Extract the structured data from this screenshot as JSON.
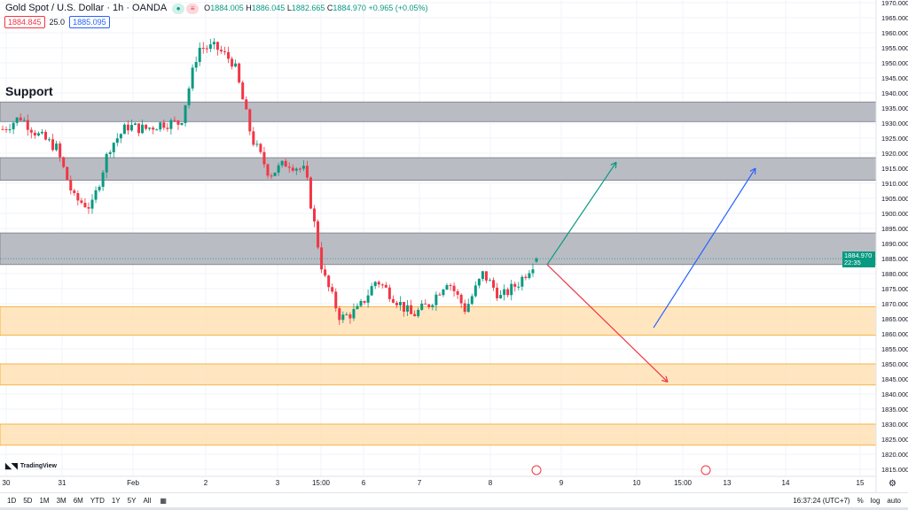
{
  "header": {
    "symbol": "Gold Spot / U.S. Dollar · 1h · OANDA",
    "open_label": "O",
    "open": "1884.005",
    "high_label": "H",
    "high": "1886.045",
    "low_label": "L",
    "low": "1882.665",
    "close_label": "C",
    "close": "1884.970",
    "change": "+0.965 (+0.05%)",
    "bid": "1884.845",
    "spread": "25.0",
    "ask": "1885.095"
  },
  "annotation_text": "Support",
  "current_price": {
    "value": "1884.970",
    "countdown": "22:35",
    "color": "#089981"
  },
  "price_axis": {
    "min": 1815,
    "max": 1970,
    "step": 5,
    "labels": [
      "1970.000",
      "1965.000",
      "1960.000",
      "1955.000",
      "1950.000",
      "1945.000",
      "1940.000",
      "1935.000",
      "1930.000",
      "1925.000",
      "1920.000",
      "1915.000",
      "1910.000",
      "1905.000",
      "1900.000",
      "1895.000",
      "1890.000",
      "1885.000",
      "1880.000",
      "1875.000",
      "1870.000",
      "1865.000",
      "1860.000",
      "1855.000",
      "1850.000",
      "1845.000",
      "1840.000",
      "1835.000",
      "1830.000",
      "1825.000",
      "1820.000",
      "1815.000"
    ]
  },
  "time_axis": [
    "30",
    "31",
    "Feb",
    "2",
    "3",
    "15:00",
    "6",
    "7",
    "8",
    "9",
    "10",
    "15:00",
    "13",
    "14",
    "15"
  ],
  "zones": [
    {
      "type": "resistance",
      "from": 1930.5,
      "to": 1937,
      "color": "#b2b5be"
    },
    {
      "type": "resistance",
      "from": 1911,
      "to": 1918.5,
      "color": "#b2b5be"
    },
    {
      "type": "resistance",
      "from": 1883,
      "to": 1893.5,
      "color": "#b2b5be"
    },
    {
      "type": "support",
      "from": 1859.5,
      "to": 1869,
      "color": "#ffe0b2"
    },
    {
      "type": "support",
      "from": 1843,
      "to": 1850,
      "color": "#ffe0b2"
    },
    {
      "type": "support",
      "from": 1823,
      "to": 1830,
      "color": "#ffe0b2"
    }
  ],
  "price_path": [
    1928,
    1932,
    1926,
    1922,
    1905,
    1902,
    1922,
    1929,
    1928,
    1930,
    1930,
    1955,
    1955,
    1950,
    1925,
    1913,
    1917,
    1914,
    1880,
    1865,
    1868,
    1878,
    1872,
    1866,
    1870,
    1878,
    1868,
    1880,
    1872,
    1877,
    1885
  ],
  "arrows": [
    {
      "color": "#089981",
      "from": 1883,
      "to": 1917
    },
    {
      "color": "#f23645",
      "from": 1883,
      "to": 1844
    },
    {
      "color": "#2962ff",
      "from": 1862,
      "to": 1915
    }
  ],
  "colors": {
    "up": "#089981",
    "down": "#f23645"
  },
  "brand": "TradingView",
  "toolbar": {
    "timeframes": [
      "1D",
      "5D",
      "1M",
      "3M",
      "6M",
      "YTD",
      "1Y",
      "5Y",
      "All"
    ],
    "clock": "16:37:24 (UTC+7)",
    "percent": "%",
    "log": "log",
    "auto": "auto"
  }
}
